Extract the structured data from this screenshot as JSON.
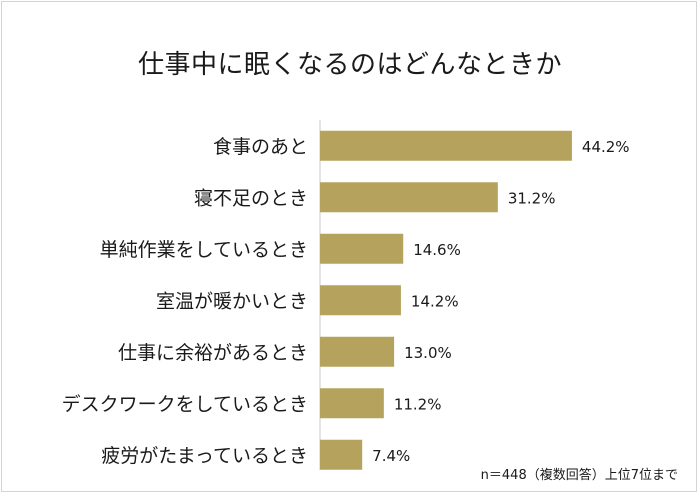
{
  "chart_data": {
    "type": "bar",
    "orientation": "horizontal",
    "title": "仕事中に眠くなるのはどんなときか",
    "categories": [
      "食事のあと",
      "寝不足のとき",
      "単純作業をしているとき",
      "室温が暖かいとき",
      "仕事に余裕があるとき",
      "デスクワークをしているとき",
      "疲労がたまっているとき"
    ],
    "values": [
      44.2,
      31.2,
      14.6,
      14.2,
      13.0,
      11.2,
      7.4
    ],
    "value_labels": [
      "44.2%",
      "31.2%",
      "14.6%",
      "14.2%",
      "13.0%",
      "11.2%",
      "7.4%"
    ],
    "unit": "%",
    "xlim": [
      0,
      48.6
    ],
    "bar_color": "#b5a35d",
    "grid": false,
    "legend": "none"
  },
  "footnote": "n＝448（複数回答）上位7位まで"
}
